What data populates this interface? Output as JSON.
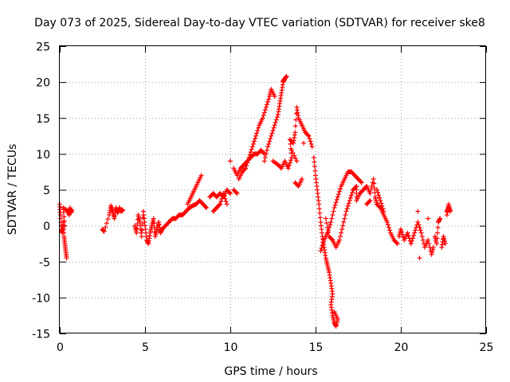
{
  "chart_data": {
    "type": "scatter",
    "title": "Day 073 of 2025, Sidereal Day-to-day VTEC variation (SDTVAR) for receiver ske8",
    "xlabel": "GPS time / hours",
    "ylabel": "SDTVAR / TECUs",
    "xlim": [
      0,
      25
    ],
    "ylim": [
      -15,
      25
    ],
    "xticks": [
      0,
      5,
      10,
      15,
      20,
      25
    ],
    "yticks": [
      -15,
      -10,
      -5,
      0,
      5,
      10,
      15,
      20,
      25
    ],
    "grid": true,
    "marker": "+",
    "color": "#ff0000",
    "series": [
      {
        "name": "SDTVAR",
        "points": [
          [
            0.0,
            3.0
          ],
          [
            0.05,
            1.5
          ],
          [
            0.1,
            -0.5
          ],
          [
            0.15,
            -1.0
          ],
          [
            0.2,
            0.5
          ],
          [
            0.25,
            -1.5
          ],
          [
            0.3,
            -2.5
          ],
          [
            0.35,
            -3.5
          ],
          [
            0.4,
            -4.5
          ],
          [
            0.3,
            0.0
          ],
          [
            0.2,
            2.5
          ],
          [
            0.5,
            2.0
          ],
          [
            0.55,
            1.5
          ],
          [
            0.6,
            2.5
          ],
          [
            0.65,
            1.8
          ],
          [
            0.7,
            2.2
          ],
          [
            2.5,
            -0.5
          ],
          [
            2.6,
            -0.8
          ],
          [
            2.9,
            1.5
          ],
          [
            3.0,
            2.8
          ],
          [
            3.1,
            2.0
          ],
          [
            3.2,
            1.0
          ],
          [
            3.3,
            2.5
          ],
          [
            3.4,
            1.8
          ],
          [
            3.5,
            2.5
          ],
          [
            3.6,
            2.0
          ],
          [
            3.7,
            2.2
          ],
          [
            4.4,
            0.0
          ],
          [
            4.5,
            -1.0
          ],
          [
            4.6,
            1.5
          ],
          [
            4.7,
            0.5
          ],
          [
            4.8,
            -1.5
          ],
          [
            4.9,
            2.0
          ],
          [
            5.0,
            0.0
          ],
          [
            5.1,
            -2.0
          ],
          [
            5.2,
            -2.5
          ],
          [
            5.3,
            -1.0
          ],
          [
            5.4,
            0.0
          ],
          [
            5.5,
            1.0
          ],
          [
            5.6,
            -1.5
          ],
          [
            5.7,
            -0.5
          ],
          [
            5.8,
            0.5
          ],
          [
            5.9,
            -1.0
          ],
          [
            6.0,
            -0.5
          ],
          [
            6.2,
            0.0
          ],
          [
            6.4,
            0.5
          ],
          [
            6.6,
            1.0
          ],
          [
            6.8,
            1.0
          ],
          [
            7.0,
            1.5
          ],
          [
            7.2,
            1.5
          ],
          [
            7.4,
            2.0
          ],
          [
            7.6,
            2.5
          ],
          [
            7.8,
            2.8
          ],
          [
            8.0,
            3.0
          ],
          [
            8.2,
            3.5
          ],
          [
            8.4,
            3.0
          ],
          [
            8.6,
            2.5
          ],
          [
            7.5,
            3.0
          ],
          [
            7.7,
            4.0
          ],
          [
            7.9,
            5.0
          ],
          [
            8.1,
            6.0
          ],
          [
            8.3,
            7.0
          ],
          [
            8.8,
            4.0
          ],
          [
            9.0,
            4.5
          ],
          [
            9.2,
            4.0
          ],
          [
            9.4,
            4.5
          ],
          [
            9.6,
            4.0
          ],
          [
            9.8,
            5.0
          ],
          [
            10.0,
            4.5
          ],
          [
            10.0,
            9.0
          ],
          [
            10.2,
            5.0
          ],
          [
            10.4,
            4.5
          ],
          [
            9.0,
            2.0
          ],
          [
            9.2,
            2.5
          ],
          [
            9.4,
            3.0
          ],
          [
            9.6,
            4.5
          ],
          [
            9.8,
            3.0
          ],
          [
            10.2,
            8.0
          ],
          [
            10.4,
            7.0
          ],
          [
            10.6,
            8.0
          ],
          [
            10.8,
            8.5
          ],
          [
            11.0,
            9.0
          ],
          [
            11.2,
            9.5
          ],
          [
            11.4,
            10.0
          ],
          [
            11.6,
            10.0
          ],
          [
            11.8,
            10.5
          ],
          [
            12.0,
            10.0
          ],
          [
            10.5,
            6.5
          ],
          [
            10.7,
            7.5
          ],
          [
            10.9,
            8.0
          ],
          [
            11.1,
            9.5
          ],
          [
            11.3,
            11.0
          ],
          [
            11.5,
            12.5
          ],
          [
            11.7,
            14.0
          ],
          [
            11.9,
            15.0
          ],
          [
            12.1,
            16.5
          ],
          [
            12.3,
            18.0
          ],
          [
            12.4,
            19.0
          ],
          [
            12.6,
            18.0
          ],
          [
            12.0,
            9.0
          ],
          [
            12.2,
            11.0
          ],
          [
            12.4,
            12.5
          ],
          [
            12.6,
            14.0
          ],
          [
            12.8,
            15.5
          ],
          [
            12.9,
            17.0
          ],
          [
            13.0,
            18.5
          ],
          [
            13.1,
            20.0
          ],
          [
            13.2,
            20.5
          ],
          [
            13.3,
            20.8
          ],
          [
            13.1,
            20.2
          ],
          [
            12.5,
            9.0
          ],
          [
            12.8,
            8.5
          ],
          [
            13.0,
            8.0
          ],
          [
            13.2,
            9.0
          ],
          [
            13.4,
            8.0
          ],
          [
            13.6,
            9.5
          ],
          [
            13.5,
            12.0
          ],
          [
            13.7,
            11.5
          ],
          [
            13.8,
            13.0
          ],
          [
            13.9,
            16.5
          ],
          [
            14.0,
            15.0
          ],
          [
            14.2,
            14.0
          ],
          [
            14.4,
            13.0
          ],
          [
            14.6,
            12.5
          ],
          [
            14.8,
            11.0
          ],
          [
            13.8,
            6.0
          ],
          [
            14.0,
            5.5
          ],
          [
            14.2,
            6.5
          ],
          [
            13.6,
            10.5
          ],
          [
            13.9,
            9.0
          ],
          [
            14.3,
            11.5
          ],
          [
            14.9,
            9.5
          ],
          [
            15.0,
            7.0
          ],
          [
            15.1,
            5.0
          ],
          [
            15.2,
            3.0
          ],
          [
            15.3,
            0.5
          ],
          [
            15.4,
            -1.5
          ],
          [
            15.5,
            -3.0
          ],
          [
            15.6,
            -4.5
          ],
          [
            15.7,
            -5.5
          ],
          [
            15.8,
            -6.5
          ],
          [
            15.9,
            -8.0
          ],
          [
            16.0,
            -9.5
          ],
          [
            15.9,
            -11.0
          ],
          [
            16.0,
            -12.5
          ],
          [
            16.1,
            -13.5
          ],
          [
            16.2,
            -14.0
          ],
          [
            16.3,
            -13.0
          ],
          [
            16.1,
            -12.0
          ],
          [
            15.3,
            -3.5
          ],
          [
            15.5,
            -2.0
          ],
          [
            15.7,
            -1.0
          ],
          [
            15.9,
            0.5
          ],
          [
            16.1,
            2.5
          ],
          [
            16.3,
            4.0
          ],
          [
            16.5,
            5.5
          ],
          [
            16.7,
            6.5
          ],
          [
            16.9,
            7.5
          ],
          [
            17.1,
            7.5
          ],
          [
            17.3,
            7.0
          ],
          [
            17.5,
            6.5
          ],
          [
            17.7,
            6.0
          ],
          [
            15.6,
            1.0
          ],
          [
            15.8,
            -1.5
          ],
          [
            16.0,
            -2.0
          ],
          [
            16.2,
            -3.0
          ],
          [
            16.4,
            -2.0
          ],
          [
            16.6,
            0.0
          ],
          [
            16.8,
            2.0
          ],
          [
            17.0,
            3.5
          ],
          [
            17.2,
            5.0
          ],
          [
            17.4,
            5.5
          ],
          [
            17.4,
            3.5
          ],
          [
            17.6,
            4.5
          ],
          [
            17.8,
            5.0
          ],
          [
            18.0,
            5.5
          ],
          [
            18.2,
            4.5
          ],
          [
            18.4,
            6.5
          ],
          [
            18.5,
            4.0
          ],
          [
            18.6,
            3.0
          ],
          [
            18.8,
            2.5
          ],
          [
            19.0,
            1.5
          ],
          [
            19.2,
            0.5
          ],
          [
            19.4,
            -1.0
          ],
          [
            19.6,
            -2.0
          ],
          [
            19.8,
            -2.5
          ],
          [
            18.0,
            3.0
          ],
          [
            18.2,
            3.5
          ],
          [
            18.6,
            5.0
          ],
          [
            18.8,
            3.5
          ],
          [
            19.0,
            2.0
          ],
          [
            19.9,
            -1.5
          ],
          [
            20.0,
            -0.5
          ],
          [
            20.2,
            -2.0
          ],
          [
            20.4,
            -1.0
          ],
          [
            20.6,
            -2.5
          ],
          [
            20.8,
            -1.0
          ],
          [
            21.0,
            0.5
          ],
          [
            21.2,
            -1.0
          ],
          [
            21.4,
            -3.0
          ],
          [
            21.6,
            -2.0
          ],
          [
            21.8,
            -4.0
          ],
          [
            21.9,
            -3.0
          ],
          [
            21.0,
            2.0
          ],
          [
            21.6,
            1.0
          ],
          [
            21.1,
            -4.5
          ],
          [
            22.0,
            -1.5
          ],
          [
            22.1,
            -2.5
          ],
          [
            22.2,
            0.5
          ],
          [
            22.3,
            1.0
          ],
          [
            22.4,
            -3.0
          ],
          [
            22.5,
            -1.5
          ],
          [
            22.6,
            -2.5
          ],
          [
            22.7,
            2.0
          ],
          [
            22.8,
            2.5
          ],
          [
            22.9,
            2.0
          ],
          [
            22.8,
            3.0
          ],
          [
            22.7,
            1.5
          ]
        ]
      }
    ]
  }
}
